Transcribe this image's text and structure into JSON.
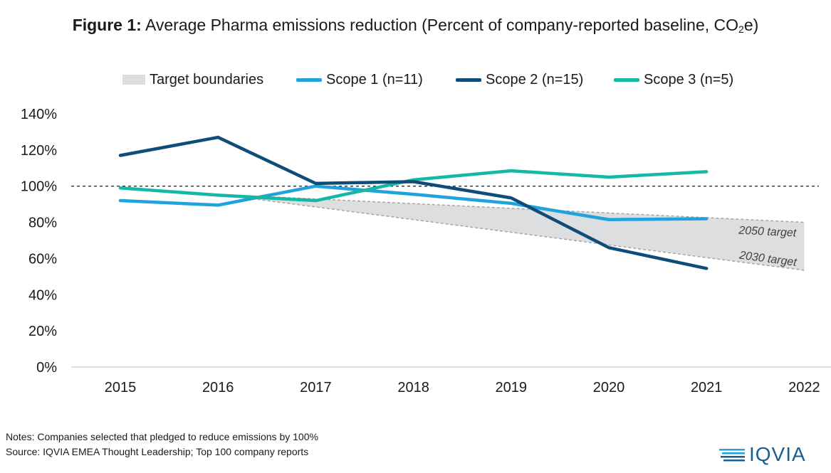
{
  "title": {
    "bold": "Figure 1:",
    "text": "Average Pharma emissions reduction (Percent of company-reported baseline, CO",
    "sub": "2",
    "end": "e)"
  },
  "notes": {
    "line1": "Notes: Companies selected that pledged to reduce emissions by 100%",
    "line2": "Source: IQVIA EMEA Thought Leadership; Top 100 company reports"
  },
  "logo": {
    "text": "IQVIA"
  },
  "colors": {
    "scope1": "#1ea3dc",
    "scope2": "#0d4d78",
    "scope3": "#14b8a6",
    "target_area": "#dcdedf",
    "target_line": "#a6a6a6"
  },
  "chart_data": {
    "type": "line",
    "categories": [
      "2015",
      "2016",
      "2017",
      "2018",
      "2019",
      "2020",
      "2021",
      "2022"
    ],
    "ylim": [
      0,
      140
    ],
    "yticks": [
      "0%",
      "20%",
      "40%",
      "60%",
      "80%",
      "100%",
      "120%",
      "140%"
    ],
    "legend_position": "top",
    "reference_line": 100,
    "series": [
      {
        "name": "Scope 1 (n=11)",
        "key": "scope1",
        "values": [
          92,
          89.5,
          100,
          95.5,
          90.5,
          81.5,
          82,
          null
        ]
      },
      {
        "name": "Scope 2 (n=15)",
        "key": "scope2",
        "values": [
          117,
          127,
          101.5,
          102.5,
          93.5,
          66,
          54.5,
          null
        ]
      },
      {
        "name": "Scope 3 (n=5)",
        "key": "scope3",
        "values": [
          99,
          95,
          92,
          103.5,
          108.5,
          105,
          108,
          null
        ]
      }
    ],
    "target_boundaries": {
      "name": "Target boundaries",
      "start_year": 2016,
      "end_year": 2022,
      "upper_start": 95.5,
      "upper_end": 80,
      "lower_start": 95.5,
      "lower_end": 53.5,
      "upper_label": "2050 target",
      "lower_label": "2030 target"
    }
  }
}
